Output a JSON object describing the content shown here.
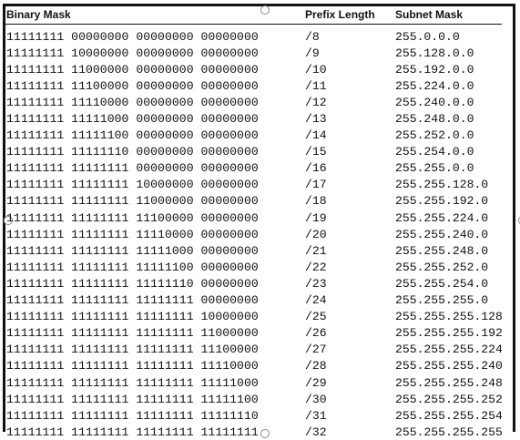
{
  "headers": {
    "binary": "Binary Mask",
    "prefix": "Prefix Length",
    "mask": "Subnet Mask"
  },
  "rows": [
    {
      "binary": "11111111 00000000 00000000 00000000",
      "prefix": "/8",
      "mask": "255.0.0.0"
    },
    {
      "binary": "11111111 10000000 00000000 00000000",
      "prefix": "/9",
      "mask": "255.128.0.0"
    },
    {
      "binary": "11111111 11000000 00000000 00000000",
      "prefix": "/10",
      "mask": "255.192.0.0"
    },
    {
      "binary": "11111111 11100000 00000000 00000000",
      "prefix": "/11",
      "mask": "255.224.0.0"
    },
    {
      "binary": "11111111 11110000 00000000 00000000",
      "prefix": "/12",
      "mask": "255.240.0.0"
    },
    {
      "binary": "11111111 11111000 00000000 00000000",
      "prefix": "/13",
      "mask": "255.248.0.0"
    },
    {
      "binary": "11111111 11111100 00000000 00000000",
      "prefix": "/14",
      "mask": "255.252.0.0"
    },
    {
      "binary": "11111111 11111110 00000000 00000000",
      "prefix": "/15",
      "mask": "255.254.0.0"
    },
    {
      "binary": "11111111 11111111 00000000 00000000",
      "prefix": "/16",
      "mask": "255.255.0.0"
    },
    {
      "binary": "11111111 11111111 10000000 00000000",
      "prefix": "/17",
      "mask": "255.255.128.0"
    },
    {
      "binary": "11111111 11111111 11000000 00000000",
      "prefix": "/18",
      "mask": "255.255.192.0"
    },
    {
      "binary": "11111111 11111111 11100000 00000000",
      "prefix": "/19",
      "mask": "255.255.224.0"
    },
    {
      "binary": "11111111 11111111 11110000 00000000",
      "prefix": "/20",
      "mask": "255.255.240.0"
    },
    {
      "binary": "11111111 11111111 11111000 00000000",
      "prefix": "/21",
      "mask": "255.255.248.0"
    },
    {
      "binary": "11111111 11111111 11111100 00000000",
      "prefix": "/22",
      "mask": "255.255.252.0"
    },
    {
      "binary": "11111111 11111111 11111110 00000000",
      "prefix": "/23",
      "mask": "255.255.254.0"
    },
    {
      "binary": "11111111 11111111 11111111 00000000",
      "prefix": "/24",
      "mask": "255.255.255.0"
    },
    {
      "binary": "11111111 11111111 11111111 10000000",
      "prefix": "/25",
      "mask": "255.255.255.128"
    },
    {
      "binary": "11111111 11111111 11111111 11000000",
      "prefix": "/26",
      "mask": "255.255.255.192"
    },
    {
      "binary": "11111111 11111111 11111111 11100000",
      "prefix": "/27",
      "mask": "255.255.255.224"
    },
    {
      "binary": "11111111 11111111 11111111 11110000",
      "prefix": "/28",
      "mask": "255.255.255.240"
    },
    {
      "binary": "11111111 11111111 11111111 11111000",
      "prefix": "/29",
      "mask": "255.255.255.248"
    },
    {
      "binary": "11111111 11111111 11111111 11111100",
      "prefix": "/30",
      "mask": "255.255.255.252"
    },
    {
      "binary": "11111111 11111111 11111111 11111110",
      "prefix": "/31",
      "mask": "255.255.255.254"
    },
    {
      "binary": "11111111 11111111 11111111 11111111",
      "prefix": "/32",
      "mask": "255.255.255.255"
    }
  ]
}
